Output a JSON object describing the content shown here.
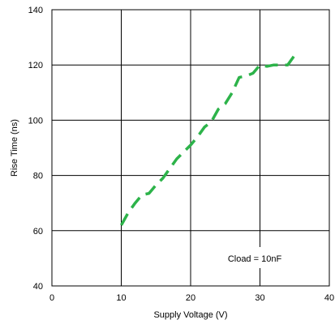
{
  "chart_data": {
    "type": "line",
    "title": "",
    "xlabel": "Supply Voltage (V)",
    "ylabel": "Rise Time (ns)",
    "xlim": [
      0,
      40
    ],
    "ylim": [
      40,
      140
    ],
    "xticks": [
      0,
      10,
      20,
      30,
      40
    ],
    "yticks": [
      40,
      60,
      80,
      100,
      120,
      140
    ],
    "grid": true,
    "annotation": "Cload = 10nF",
    "series": [
      {
        "color": "#2db34a",
        "line_style": "dashed",
        "x": [
          10,
          11,
          12,
          13,
          14,
          15,
          16,
          17,
          18,
          19,
          20,
          21,
          22,
          23,
          24,
          25,
          26,
          27,
          28,
          29,
          30,
          31,
          32,
          33,
          34,
          35
        ],
        "y": [
          62,
          66.5,
          70,
          73,
          73.5,
          76.5,
          79,
          82.5,
          86,
          88.5,
          91,
          94,
          97.5,
          99.5,
          104,
          106,
          110,
          115.5,
          116,
          117,
          120,
          119.5,
          120,
          120,
          120,
          123.5
        ]
      }
    ]
  }
}
